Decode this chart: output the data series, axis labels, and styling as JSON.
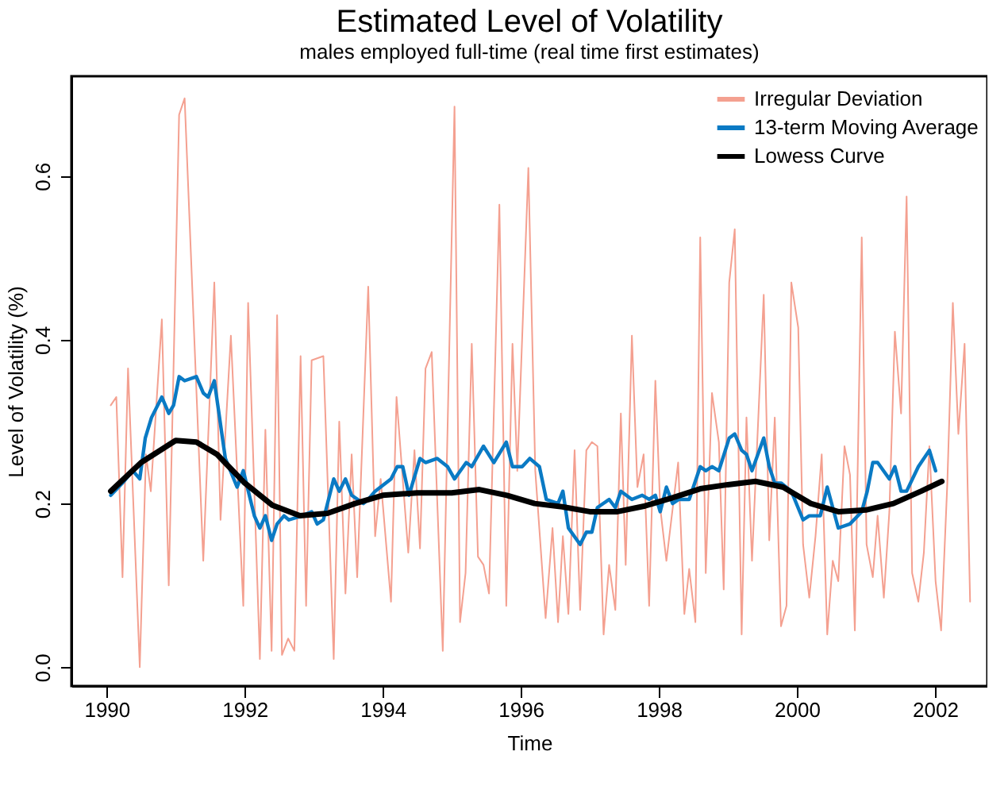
{
  "chart_data": {
    "type": "line",
    "title": "Estimated Level of Volatility",
    "subtitle": "males employed full-time (real time first estimates)",
    "xlabel": "Time",
    "ylabel": "Level of Volatility (%)",
    "xlim": [
      1989.49,
      2002.76
    ],
    "xticks": [
      1990,
      1992,
      1994,
      1996,
      1998,
      2000,
      2002
    ],
    "ylim": [
      -0.023,
      0.722
    ],
    "yticks": [
      {
        "value": 0,
        "label": "0.0"
      },
      0.2,
      0.4,
      0.6
    ],
    "grid": false,
    "legend": "top right",
    "line_style": "solid",
    "marker": "none",
    "series": [
      {
        "name": "Irregular Deviation",
        "color": "#f4a090",
        "x": [
          1990.06,
          1990.14,
          1990.23,
          1990.31,
          1990.48,
          1990.57,
          1990.64,
          1990.8,
          1990.9,
          1991.05,
          1991.13,
          1991.4,
          1991.56,
          1991.65,
          1991.8,
          1991.98,
          1992.05,
          1992.22,
          1992.3,
          1992.39,
          1992.47,
          1992.54,
          1992.63,
          1992.72,
          1992.81,
          1992.89,
          1992.97,
          1993.14,
          1993.29,
          1993.37,
          1993.46,
          1993.55,
          1993.63,
          1993.79,
          1993.89,
          1993.97,
          1994.12,
          1994.2,
          1994.37,
          1994.46,
          1994.54,
          1994.62,
          1994.71,
          1994.87,
          1995.04,
          1995.12,
          1995.2,
          1995.29,
          1995.38,
          1995.46,
          1995.54,
          1995.69,
          1995.79,
          1995.88,
          1995.95,
          1996.11,
          1996.21,
          1996.36,
          1996.46,
          1996.54,
          1996.61,
          1996.69,
          1996.78,
          1996.86,
          1996.95,
          1997.03,
          1997.11,
          1997.2,
          1997.28,
          1997.37,
          1997.45,
          1997.52,
          1997.61,
          1997.69,
          1997.78,
          1997.86,
          1997.95,
          1998.02,
          1998.11,
          1998.28,
          1998.37,
          1998.44,
          1998.53,
          1998.6,
          1998.68,
          1998.77,
          1998.87,
          1998.94,
          1999.02,
          1999.1,
          1999.2,
          1999.27,
          1999.35,
          1999.52,
          1999.6,
          1999.68,
          1999.77,
          1999.85,
          1999.92,
          2000.02,
          2000.09,
          2000.18,
          2000.27,
          2000.36,
          2000.44,
          2000.52,
          2000.6,
          2000.69,
          2000.77,
          2000.84,
          2000.94,
          2001.01,
          2001.1,
          2001.17,
          2001.26,
          2001.34,
          2001.42,
          2001.51,
          2001.59,
          2001.67,
          2001.76,
          2001.84,
          2001.92,
          2002.01,
          2002.09,
          2002.18,
          2002.26,
          2002.34,
          2002.43,
          2002.51
        ],
        "values": [
          0.32,
          0.33,
          0.11,
          0.365,
          0.0,
          0.26,
          0.215,
          0.425,
          0.1,
          0.675,
          0.695,
          0.13,
          0.47,
          0.18,
          0.405,
          0.075,
          0.445,
          0.01,
          0.29,
          0.02,
          0.43,
          0.015,
          0.035,
          0.02,
          0.38,
          0.075,
          0.375,
          0.38,
          0.01,
          0.3,
          0.09,
          0.26,
          0.11,
          0.465,
          0.16,
          0.23,
          0.08,
          0.33,
          0.14,
          0.265,
          0.145,
          0.365,
          0.385,
          0.02,
          0.685,
          0.055,
          0.115,
          0.395,
          0.135,
          0.125,
          0.09,
          0.565,
          0.075,
          0.395,
          0.24,
          0.61,
          0.24,
          0.06,
          0.17,
          0.055,
          0.16,
          0.065,
          0.265,
          0.07,
          0.265,
          0.275,
          0.27,
          0.04,
          0.125,
          0.07,
          0.31,
          0.125,
          0.405,
          0.22,
          0.26,
          0.075,
          0.35,
          0.195,
          0.13,
          0.25,
          0.065,
          0.12,
          0.055,
          0.525,
          0.115,
          0.335,
          0.275,
          0.095,
          0.47,
          0.535,
          0.04,
          0.305,
          0.13,
          0.455,
          0.155,
          0.305,
          0.05,
          0.075,
          0.47,
          0.415,
          0.15,
          0.085,
          0.16,
          0.26,
          0.04,
          0.13,
          0.105,
          0.27,
          0.235,
          0.045,
          0.525,
          0.15,
          0.11,
          0.185,
          0.085,
          0.19,
          0.41,
          0.31,
          0.575,
          0.115,
          0.08,
          0.14,
          0.27,
          0.105,
          0.045,
          0.225,
          0.445,
          0.285,
          0.395,
          0.08
        ]
      },
      {
        "name": "13-term Moving Average",
        "color": "#0a7ac4",
        "x": [
          1990.06,
          1990.23,
          1990.38,
          1990.48,
          1990.56,
          1990.65,
          1990.8,
          1990.9,
          1990.97,
          1991.05,
          1991.13,
          1991.3,
          1991.4,
          1991.47,
          1991.56,
          1991.72,
          1991.89,
          1991.98,
          1992.14,
          1992.22,
          1992.3,
          1992.39,
          1992.47,
          1992.57,
          1992.64,
          1992.83,
          1992.97,
          1993.05,
          1993.14,
          1993.29,
          1993.37,
          1993.46,
          1993.55,
          1993.72,
          1993.79,
          1993.89,
          1994.12,
          1994.21,
          1994.29,
          1994.38,
          1994.54,
          1994.62,
          1994.79,
          1994.94,
          1995.04,
          1995.21,
          1995.29,
          1995.46,
          1995.61,
          1995.79,
          1995.88,
          1996.02,
          1996.13,
          1996.27,
          1996.37,
          1996.54,
          1996.61,
          1996.69,
          1996.86,
          1996.95,
          1997.03,
          1997.11,
          1997.28,
          1997.37,
          1997.45,
          1997.61,
          1997.76,
          1997.86,
          1997.95,
          1998.02,
          1998.11,
          1998.2,
          1998.29,
          1998.44,
          1998.6,
          1998.68,
          1998.77,
          1998.87,
          1999.02,
          1999.1,
          1999.2,
          1999.27,
          1999.35,
          1999.52,
          1999.6,
          1999.68,
          1999.77,
          1999.92,
          2000.09,
          2000.18,
          2000.34,
          2000.44,
          2000.6,
          2000.77,
          2000.94,
          2001.02,
          2001.1,
          2001.17,
          2001.34,
          2001.42,
          2001.51,
          2001.59,
          2001.76,
          2001.92,
          2002.01
        ],
        "values": [
          0.21,
          0.225,
          0.24,
          0.23,
          0.28,
          0.305,
          0.33,
          0.31,
          0.32,
          0.355,
          0.35,
          0.355,
          0.335,
          0.33,
          0.35,
          0.255,
          0.22,
          0.24,
          0.185,
          0.17,
          0.185,
          0.155,
          0.175,
          0.185,
          0.18,
          0.185,
          0.19,
          0.175,
          0.18,
          0.23,
          0.215,
          0.23,
          0.21,
          0.2,
          0.205,
          0.215,
          0.23,
          0.245,
          0.245,
          0.21,
          0.255,
          0.25,
          0.255,
          0.245,
          0.23,
          0.25,
          0.245,
          0.27,
          0.25,
          0.275,
          0.245,
          0.245,
          0.255,
          0.245,
          0.205,
          0.2,
          0.215,
          0.17,
          0.15,
          0.165,
          0.165,
          0.195,
          0.205,
          0.195,
          0.215,
          0.205,
          0.21,
          0.205,
          0.21,
          0.19,
          0.22,
          0.2,
          0.205,
          0.205,
          0.245,
          0.24,
          0.245,
          0.24,
          0.28,
          0.285,
          0.265,
          0.26,
          0.24,
          0.28,
          0.245,
          0.225,
          0.225,
          0.215,
          0.18,
          0.185,
          0.185,
          0.22,
          0.17,
          0.175,
          0.19,
          0.215,
          0.25,
          0.25,
          0.23,
          0.245,
          0.215,
          0.215,
          0.245,
          0.265,
          0.24
        ]
      },
      {
        "name": "Lowess Curve",
        "color": "#000000",
        "x": [
          1990.06,
          1990.5,
          1991.0,
          1991.3,
          1991.6,
          1992.0,
          1992.4,
          1992.8,
          1993.2,
          1993.6,
          1994.0,
          1994.5,
          1995.0,
          1995.4,
          1995.8,
          1996.2,
          1996.6,
          1997.0,
          1997.4,
          1997.8,
          1998.2,
          1998.6,
          1999.0,
          1999.4,
          1999.8,
          2000.2,
          2000.6,
          2001.0,
          2001.4,
          2001.8,
          2002.1
        ],
        "values": [
          0.215,
          0.25,
          0.277,
          0.275,
          0.26,
          0.225,
          0.198,
          0.185,
          0.188,
          0.2,
          0.21,
          0.213,
          0.213,
          0.217,
          0.21,
          0.2,
          0.196,
          0.19,
          0.19,
          0.197,
          0.207,
          0.218,
          0.223,
          0.227,
          0.22,
          0.2,
          0.19,
          0.192,
          0.2,
          0.215,
          0.227
        ]
      }
    ]
  }
}
